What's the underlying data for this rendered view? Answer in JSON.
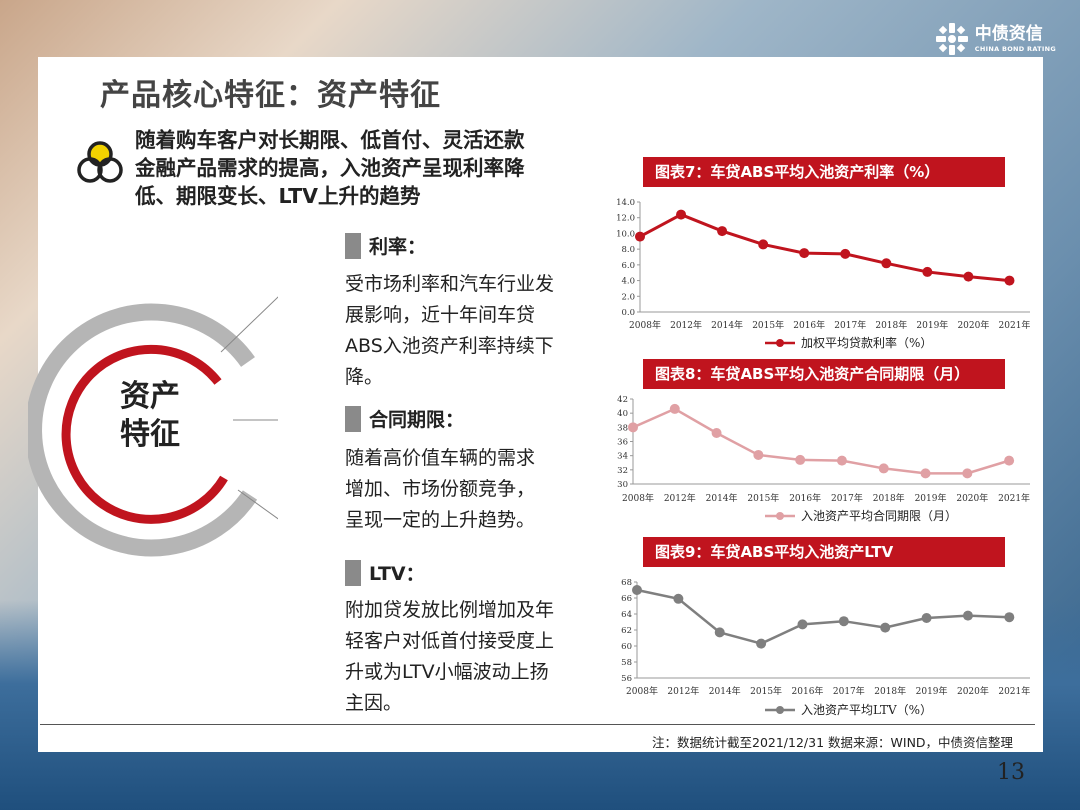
{
  "header": {
    "title": "产品核心特征：资产特征",
    "logo_cn": "中债资信",
    "logo_en": "CHINA BOND RATING"
  },
  "intro": {
    "lines": [
      "随着购车客户对长期限、低首付、灵活还款",
      "金融产品需求的提高，入池资产呈现利率降",
      "低、期限变长、LTV上升的趋势"
    ]
  },
  "center_label": [
    "资产",
    "特征"
  ],
  "sections": [
    {
      "title": "利率：",
      "lines": [
        "受市场利率和汽车行业发",
        "展影响，近十年间车贷",
        "ABS入池资产利率持续下",
        "降。"
      ]
    },
    {
      "title": "合同期限：",
      "lines": [
        "随着高价值车辆的需求",
        "增加、市场份额竞争，",
        "呈现一定的上升趋势。"
      ]
    },
    {
      "title": "LTV：",
      "lines": [
        "附加贷发放比例增加及年",
        "轻客户对低首付接受度上",
        "升或为LTV小幅波动上扬",
        "主因。"
      ]
    }
  ],
  "chart_titles": [
    "图表7：车贷ABS平均入池资产利率（%）",
    "图表8：车贷ABS平均入池资产合同期限（月）",
    "图表9：车贷ABS平均入池资产LTV"
  ],
  "chart_data": [
    {
      "type": "line",
      "categories": [
        "2008年",
        "2012年",
        "2014年",
        "2015年",
        "2016年",
        "2017年",
        "2018年",
        "2019年",
        "2020年",
        "2021年"
      ],
      "series": [
        {
          "name": "加权平均贷款利率（%）",
          "values": [
            9.6,
            12.4,
            10.3,
            8.6,
            7.5,
            7.4,
            6.2,
            5.1,
            4.5,
            4.0
          ]
        }
      ],
      "ylim": [
        0,
        14
      ],
      "yticks": [
        "0.0",
        "2.0",
        "4.0",
        "6.0",
        "8.0",
        "10.0",
        "12.0",
        "14.0"
      ],
      "color": "#c0141e"
    },
    {
      "type": "line",
      "categories": [
        "2008年",
        "2012年",
        "2014年",
        "2015年",
        "2016年",
        "2017年",
        "2018年",
        "2019年",
        "2020年",
        "2021年"
      ],
      "series": [
        {
          "name": "入池资产平均合同期限（月）",
          "values": [
            38.0,
            40.6,
            37.2,
            34.1,
            33.4,
            33.3,
            32.2,
            31.5,
            31.5,
            33.3
          ]
        }
      ],
      "ylim": [
        30,
        42
      ],
      "yticks": [
        "30",
        "32",
        "34",
        "36",
        "38",
        "40",
        "42"
      ],
      "color": "#e0a0a4"
    },
    {
      "type": "line",
      "categories": [
        "2008年",
        "2012年",
        "2014年",
        "2015年",
        "2016年",
        "2017年",
        "2018年",
        "2019年",
        "2020年",
        "2021年"
      ],
      "series": [
        {
          "name": "入池资产平均LTV（%）",
          "values": [
            67.0,
            65.9,
            61.7,
            60.3,
            62.7,
            63.1,
            62.3,
            63.5,
            63.8,
            63.6
          ]
        }
      ],
      "ylim": [
        56,
        68
      ],
      "yticks": [
        "56",
        "58",
        "60",
        "62",
        "64",
        "66",
        "68"
      ],
      "color": "#7f7f7f"
    }
  ],
  "footnote": "注：数据统计截至2021/12/31  数据来源：WIND，中债资信整理",
  "page_number": "13"
}
